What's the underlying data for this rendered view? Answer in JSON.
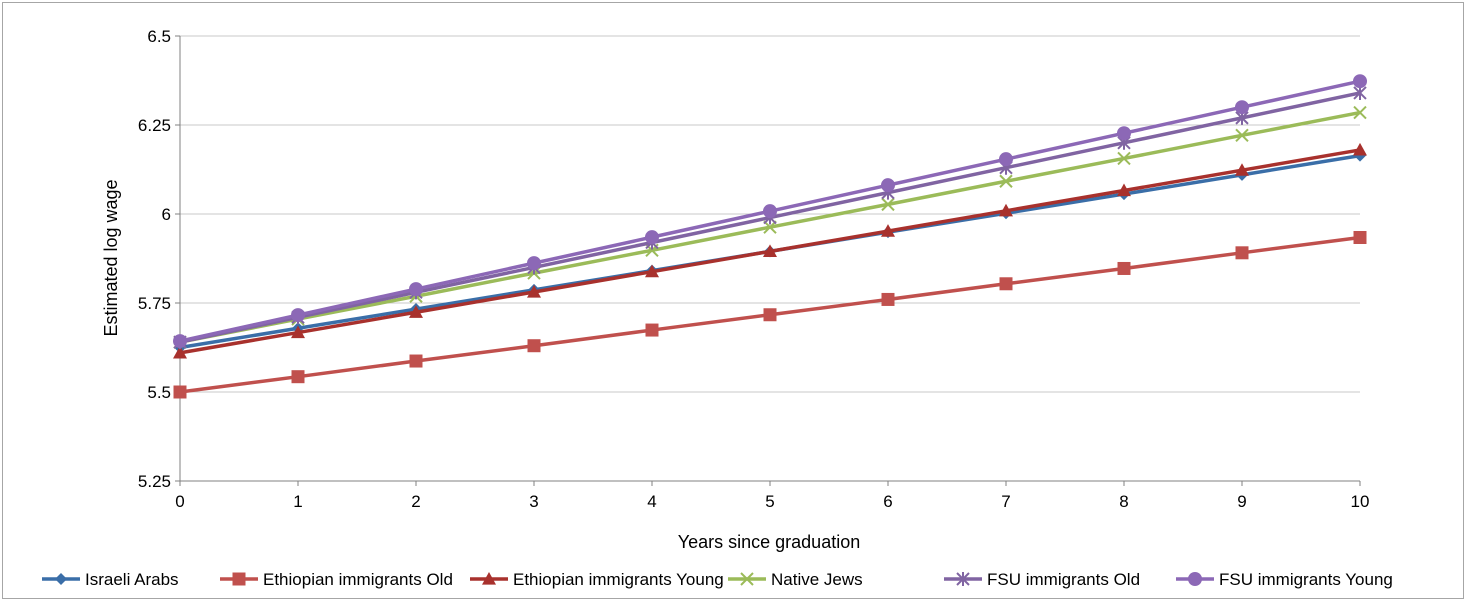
{
  "chart_data": {
    "type": "line",
    "title": "",
    "xlabel": "Years since graduation",
    "ylabel": "Estimated log wage",
    "x": [
      0,
      1,
      2,
      3,
      4,
      5,
      6,
      7,
      8,
      9,
      10
    ],
    "ylim": [
      5.25,
      6.5
    ],
    "yticks": [
      "5.25",
      "5.5",
      "5.75",
      "6",
      "6.25",
      "6.5"
    ],
    "xticks": [
      "0",
      "1",
      "2",
      "3",
      "4",
      "5",
      "6",
      "7",
      "8",
      "9",
      "10"
    ],
    "grid": "horizontal",
    "legend_position": "bottom",
    "series": [
      {
        "name": "Israeli Arabs",
        "color": "#3a6ea8",
        "marker": "diamond",
        "values": [
          5.625,
          5.679,
          5.733,
          5.787,
          5.841,
          5.895,
          5.949,
          6.002,
          6.056,
          6.11,
          6.164
        ]
      },
      {
        "name": "Ethiopian immigrants Old",
        "color": "#c0504d",
        "marker": "square",
        "values": [
          5.5,
          5.543,
          5.587,
          5.63,
          5.674,
          5.717,
          5.76,
          5.804,
          5.847,
          5.891,
          5.934
        ]
      },
      {
        "name": "Ethiopian immigrants Young",
        "color": "#a8312d",
        "marker": "triangle",
        "values": [
          5.61,
          5.667,
          5.724,
          5.781,
          5.838,
          5.895,
          5.952,
          6.009,
          6.066,
          6.123,
          6.18
        ]
      },
      {
        "name": "Native Jews",
        "color": "#9bbb59",
        "marker": "x",
        "values": [
          5.64,
          5.705,
          5.769,
          5.834,
          5.898,
          5.963,
          6.027,
          6.092,
          6.156,
          6.221,
          6.285
        ]
      },
      {
        "name": "FSU immigrants Old",
        "color": "#8064a2",
        "marker": "star",
        "values": [
          5.64,
          5.71,
          5.78,
          5.85,
          5.92,
          5.99,
          6.06,
          6.13,
          6.2,
          6.27,
          6.34
        ]
      },
      {
        "name": "FSU immigrants Young",
        "color": "#8c68b6",
        "marker": "circle",
        "values": [
          5.643,
          5.716,
          5.789,
          5.862,
          5.935,
          6.008,
          6.081,
          6.154,
          6.227,
          6.3,
          6.373
        ]
      }
    ]
  }
}
